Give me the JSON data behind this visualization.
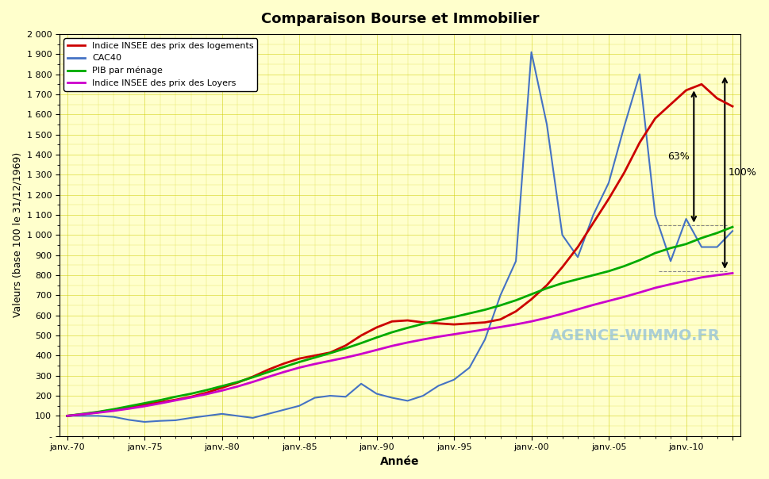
{
  "title": "Comparaison Bourse et Immobilier",
  "xlabel": "Année",
  "ylabel": "Valeurs (base 100 le 31/12/1969)",
  "background_color": "#FFFFCC",
  "ylim": [
    0,
    2000
  ],
  "yticks": [
    0,
    100,
    200,
    300,
    400,
    500,
    600,
    700,
    800,
    900,
    1000,
    1100,
    1200,
    1300,
    1400,
    1500,
    1600,
    1700,
    1800,
    1900,
    2000
  ],
  "ytick_labels": [
    "-",
    "100",
    "200",
    "300",
    "400",
    "500",
    "600",
    "700",
    "800",
    "900",
    "1 000",
    "1 100",
    "1 200",
    "1 300",
    "1 400",
    "1 500",
    "1 600",
    "1 700",
    "1 800",
    "1 900",
    "2 000"
  ],
  "xticks": [
    1970,
    1975,
    1980,
    1985,
    1990,
    1995,
    2000,
    2005,
    2010,
    2013
  ],
  "xtick_labels": [
    "janv.-70",
    "janv.-75",
    "janv.-80",
    "janv.-85",
    "janv.-90",
    "janv.-95",
    "janv.-00",
    "janv.-05",
    "janv.-10",
    ""
  ],
  "legend_entries": [
    "Indice INSEE des prix des logements",
    "CAC40",
    "PIB par ménage",
    "Indice INSEE des prix des Loyers"
  ],
  "legend_colors": [
    "#CC0000",
    "#4472C4",
    "#00AA00",
    "#CC00CC"
  ],
  "watermark": "AGENCE-WIMMO.FR",
  "annotation_63": "63%",
  "annotation_100": "100%",
  "immo_x": [
    1970,
    1971,
    1972,
    1973,
    1974,
    1975,
    1976,
    1977,
    1978,
    1979,
    1980,
    1981,
    1982,
    1983,
    1984,
    1985,
    1986,
    1987,
    1988,
    1989,
    1990,
    1991,
    1992,
    1993,
    1994,
    1995,
    1996,
    1997,
    1998,
    1999,
    2000,
    2001,
    2002,
    2003,
    2004,
    2005,
    2006,
    2007,
    2008,
    2009,
    2010,
    2011,
    2012,
    2013
  ],
  "immo_y": [
    100,
    108,
    118,
    130,
    145,
    155,
    168,
    180,
    195,
    215,
    240,
    265,
    295,
    330,
    360,
    385,
    400,
    415,
    450,
    500,
    540,
    570,
    575,
    565,
    560,
    555,
    560,
    565,
    580,
    620,
    680,
    750,
    840,
    940,
    1060,
    1180,
    1310,
    1460,
    1580,
    1650,
    1720,
    1750,
    1680,
    1640
  ],
  "cac40_x": [
    1970,
    1971,
    1972,
    1973,
    1974,
    1975,
    1976,
    1977,
    1978,
    1979,
    1980,
    1981,
    1982,
    1983,
    1984,
    1985,
    1986,
    1987,
    1988,
    1989,
    1990,
    1991,
    1992,
    1993,
    1994,
    1995,
    1996,
    1997,
    1998,
    1999,
    2000,
    2001,
    2002,
    2003,
    2004,
    2005,
    2006,
    2007,
    2008,
    2009,
    2010,
    2011,
    2012,
    2013
  ],
  "cac40_y": [
    100,
    100,
    100,
    95,
    80,
    70,
    75,
    78,
    90,
    100,
    110,
    100,
    90,
    110,
    130,
    150,
    190,
    200,
    195,
    260,
    210,
    190,
    175,
    200,
    250,
    280,
    340,
    480,
    700,
    870,
    1910,
    1550,
    1000,
    890,
    1100,
    1260,
    1540,
    1800,
    1100,
    870,
    1080,
    940,
    940,
    1020
  ],
  "pib_x": [
    1970,
    1971,
    1972,
    1973,
    1974,
    1975,
    1976,
    1977,
    1978,
    1979,
    1980,
    1981,
    1982,
    1983,
    1984,
    1985,
    1986,
    1987,
    1988,
    1989,
    1990,
    1991,
    1992,
    1993,
    1994,
    1995,
    1996,
    1997,
    1998,
    1999,
    2000,
    2001,
    2002,
    2003,
    2004,
    2005,
    2006,
    2007,
    2008,
    2009,
    2010,
    2011,
    2012,
    2013
  ],
  "pib_y": [
    100,
    110,
    120,
    133,
    148,
    163,
    178,
    195,
    210,
    228,
    248,
    268,
    292,
    318,
    343,
    368,
    390,
    412,
    436,
    462,
    490,
    516,
    538,
    558,
    576,
    592,
    610,
    628,
    650,
    675,
    705,
    735,
    760,
    780,
    800,
    820,
    845,
    875,
    910,
    935,
    955,
    985,
    1010,
    1040
  ],
  "loyers_x": [
    1970,
    1971,
    1972,
    1973,
    1974,
    1975,
    1976,
    1977,
    1978,
    1979,
    1980,
    1981,
    1982,
    1983,
    1984,
    1985,
    1986,
    1987,
    1988,
    1989,
    1990,
    1991,
    1992,
    1993,
    1994,
    1995,
    1996,
    1997,
    1998,
    1999,
    2000,
    2001,
    2002,
    2003,
    2004,
    2005,
    2006,
    2007,
    2008,
    2009,
    2010,
    2011,
    2012,
    2013
  ],
  "loyers_y": [
    100,
    108,
    116,
    125,
    136,
    148,
    162,
    177,
    192,
    208,
    226,
    246,
    269,
    294,
    318,
    340,
    358,
    374,
    390,
    408,
    428,
    448,
    465,
    480,
    494,
    506,
    518,
    530,
    542,
    555,
    570,
    588,
    608,
    630,
    652,
    672,
    692,
    714,
    737,
    755,
    772,
    789,
    800,
    810
  ]
}
